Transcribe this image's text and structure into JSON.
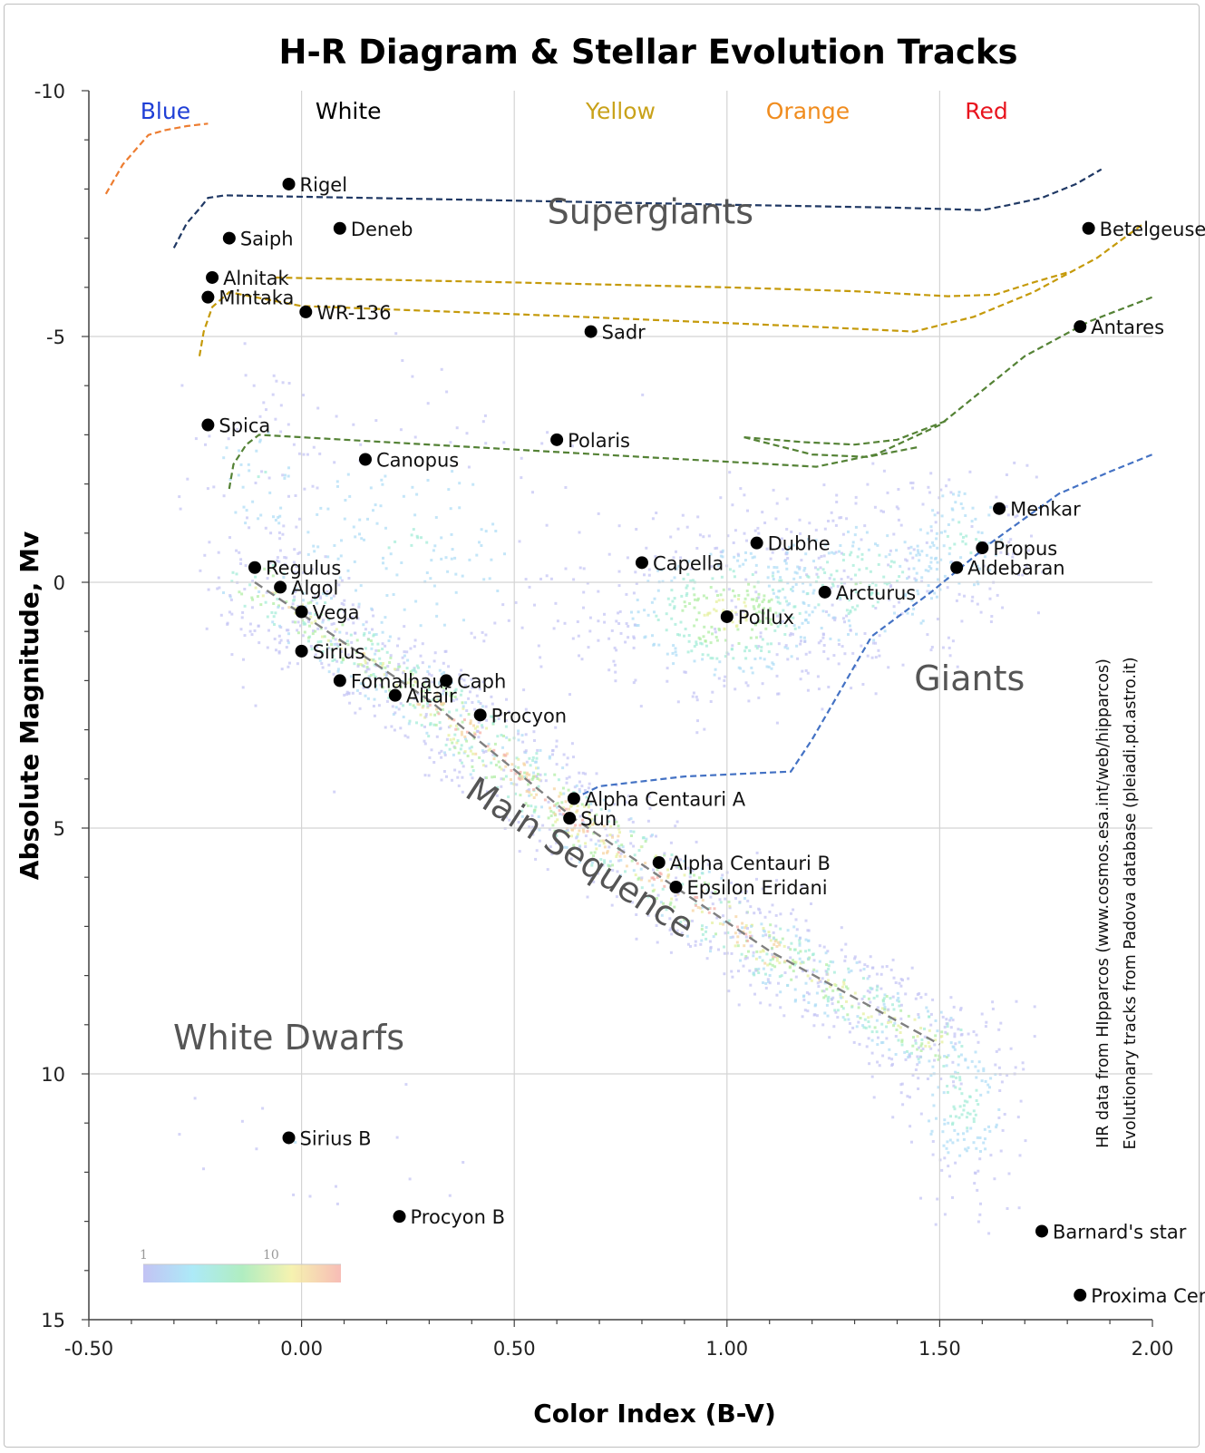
{
  "chart_data": {
    "type": "scatter",
    "title": "H-R Diagram & Stellar Evolution Tracks",
    "xlabel": "Color Index (B-V)",
    "ylabel": "Absolute Magnitude, Mv",
    "xlim": [
      -0.5,
      2.0
    ],
    "ylim": [
      -10,
      15
    ],
    "y_inverted": true,
    "grid": true,
    "x_ticks": [
      -0.5,
      0.0,
      0.5,
      1.0,
      1.5,
      2.0
    ],
    "x_tick_labels": [
      "-0.50",
      "0.00",
      "0.50",
      "1.00",
      "1.50",
      "2.00"
    ],
    "y_ticks": [
      -10,
      -5,
      0,
      5,
      10,
      15
    ],
    "y_tick_labels": [
      "-10",
      "-5",
      "0",
      "5",
      "10",
      "15"
    ],
    "color_bands": [
      {
        "label": "Blue",
        "x": -0.32,
        "color": "#1f3fd6"
      },
      {
        "label": "White",
        "x": 0.11,
        "color": "#000000"
      },
      {
        "label": "Yellow",
        "x": 0.75,
        "color": "#c9a21a"
      },
      {
        "label": "Orange",
        "x": 1.19,
        "color": "#f08c1e"
      },
      {
        "label": "Red",
        "x": 1.61,
        "color": "#e8141e"
      }
    ],
    "regions": [
      {
        "label": "Supergiants",
        "x": 0.82,
        "y": -7.3,
        "rotation": 0
      },
      {
        "label": "Giants",
        "x": 1.57,
        "y": 2.2,
        "rotation": 0
      },
      {
        "label": "White Dwarfs",
        "x": -0.03,
        "y": 9.5,
        "rotation": 0
      },
      {
        "label": "Main Sequence",
        "x": 0.64,
        "y": 5.8,
        "rotation": 33
      }
    ],
    "stars": [
      {
        "name": "Rigel",
        "x": -0.03,
        "y": -8.1
      },
      {
        "name": "Deneb",
        "x": 0.09,
        "y": -7.2
      },
      {
        "name": "Saiph",
        "x": -0.17,
        "y": -7.0
      },
      {
        "name": "Betelgeuse",
        "x": 1.85,
        "y": -7.2
      },
      {
        "name": "Alnitak",
        "x": -0.21,
        "y": -6.2
      },
      {
        "name": "Mintaka",
        "x": -0.22,
        "y": -5.8
      },
      {
        "name": "WR-136",
        "x": 0.01,
        "y": -5.5
      },
      {
        "name": "Sadr",
        "x": 0.68,
        "y": -5.1
      },
      {
        "name": "Antares",
        "x": 1.83,
        "y": -5.2
      },
      {
        "name": "Spica",
        "x": -0.22,
        "y": -3.2
      },
      {
        "name": "Polaris",
        "x": 0.6,
        "y": -2.9
      },
      {
        "name": "Canopus",
        "x": 0.15,
        "y": -2.5
      },
      {
        "name": "Menkar",
        "x": 1.64,
        "y": -1.5
      },
      {
        "name": "Dubhe",
        "x": 1.07,
        "y": -0.8
      },
      {
        "name": "Propus",
        "x": 1.6,
        "y": -0.7
      },
      {
        "name": "Capella",
        "x": 0.8,
        "y": -0.4
      },
      {
        "name": "Aldebaran",
        "x": 1.54,
        "y": -0.3
      },
      {
        "name": "Regulus",
        "x": -0.11,
        "y": -0.3
      },
      {
        "name": "Algol",
        "x": -0.05,
        "y": 0.1
      },
      {
        "name": "Arcturus",
        "x": 1.23,
        "y": 0.2
      },
      {
        "name": "Vega",
        "x": 0.0,
        "y": 0.6
      },
      {
        "name": "Pollux",
        "x": 1.0,
        "y": 0.7
      },
      {
        "name": "Sirius",
        "x": 0.0,
        "y": 1.4
      },
      {
        "name": "Fomalhaut",
        "x": 0.09,
        "y": 2.0
      },
      {
        "name": "Caph",
        "x": 0.34,
        "y": 2.0
      },
      {
        "name": "Altair",
        "x": 0.22,
        "y": 2.3
      },
      {
        "name": "Procyon",
        "x": 0.42,
        "y": 2.7
      },
      {
        "name": "Alpha Centauri A",
        "x": 0.64,
        "y": 4.4
      },
      {
        "name": "Sun",
        "x": 0.63,
        "y": 4.8
      },
      {
        "name": "Alpha Centauri B",
        "x": 0.84,
        "y": 5.7
      },
      {
        "name": "Epsilon Eridani",
        "x": 0.88,
        "y": 6.2
      },
      {
        "name": "Sirius B",
        "x": -0.03,
        "y": 11.3
      },
      {
        "name": "Procyon B",
        "x": 0.23,
        "y": 12.9
      },
      {
        "name": "Barnard's star",
        "x": 1.74,
        "y": 13.2
      },
      {
        "name": "Proxima Centauri",
        "x": 1.83,
        "y": 14.5
      }
    ],
    "main_sequence_line": [
      [
        -0.11,
        0.0
      ],
      [
        0.3,
        2.4
      ],
      [
        0.64,
        4.8
      ],
      [
        1.1,
        7.5
      ],
      [
        1.5,
        9.4
      ]
    ],
    "evolution_tracks": [
      {
        "color": "#ed7d31",
        "points": [
          [
            -0.46,
            -7.9
          ],
          [
            -0.42,
            -8.5
          ],
          [
            -0.38,
            -8.9
          ],
          [
            -0.36,
            -9.1
          ],
          [
            -0.32,
            -9.2
          ],
          [
            -0.27,
            -9.28
          ],
          [
            -0.22,
            -9.33
          ]
        ]
      },
      {
        "color": "#1f3864",
        "points": [
          [
            -0.3,
            -6.8
          ],
          [
            -0.27,
            -7.3
          ],
          [
            -0.24,
            -7.6
          ],
          [
            -0.22,
            -7.82
          ],
          [
            -0.18,
            -7.87
          ],
          [
            0.4,
            -7.78
          ],
          [
            1.0,
            -7.68
          ],
          [
            1.4,
            -7.62
          ],
          [
            1.6,
            -7.57
          ],
          [
            1.66,
            -7.67
          ],
          [
            1.74,
            -7.82
          ],
          [
            1.82,
            -8.1
          ],
          [
            1.88,
            -8.4
          ]
        ]
      },
      {
        "color": "#c59a0a",
        "points": [
          [
            -0.24,
            -4.6
          ],
          [
            -0.23,
            -5.1
          ],
          [
            -0.21,
            -5.6
          ],
          [
            -0.17,
            -5.9
          ],
          [
            0.0,
            -5.62
          ],
          [
            0.6,
            -5.42
          ],
          [
            1.2,
            -5.2
          ],
          [
            1.44,
            -5.1
          ],
          [
            1.58,
            -5.4
          ],
          [
            1.72,
            -5.9
          ],
          [
            1.87,
            -6.6
          ],
          [
            1.98,
            -7.3
          ]
        ]
      },
      {
        "color": "#c59a0a",
        "points": [
          [
            -0.06,
            -6.2
          ],
          [
            0.5,
            -6.1
          ],
          [
            1.0,
            -6.0
          ],
          [
            1.3,
            -5.92
          ],
          [
            1.52,
            -5.82
          ],
          [
            1.63,
            -5.85
          ],
          [
            1.72,
            -6.1
          ],
          [
            1.8,
            -6.3
          ]
        ]
      },
      {
        "color": "#548235",
        "points": [
          [
            -0.17,
            -1.9
          ],
          [
            -0.16,
            -2.4
          ],
          [
            -0.13,
            -2.8
          ],
          [
            -0.1,
            -3.0
          ],
          [
            0.4,
            -2.75
          ],
          [
            0.8,
            -2.55
          ],
          [
            1.21,
            -2.35
          ],
          [
            1.35,
            -2.6
          ],
          [
            1.5,
            -3.2
          ],
          [
            1.7,
            -4.6
          ],
          [
            1.85,
            -5.3
          ],
          [
            2.0,
            -5.8
          ]
        ]
      },
      {
        "color": "#548235",
        "points": [
          [
            1.04,
            -2.95
          ],
          [
            1.18,
            -2.85
          ],
          [
            1.3,
            -2.8
          ],
          [
            1.4,
            -2.9
          ],
          [
            1.52,
            -3.3
          ]
        ]
      },
      {
        "color": "#548235",
        "points": [
          [
            1.04,
            -2.95
          ],
          [
            1.2,
            -2.6
          ],
          [
            1.33,
            -2.55
          ],
          [
            1.45,
            -2.75
          ]
        ]
      },
      {
        "color": "#4472c4",
        "points": [
          [
            0.64,
            4.4
          ],
          [
            0.7,
            4.15
          ],
          [
            0.9,
            3.95
          ],
          [
            1.15,
            3.85
          ],
          [
            1.2,
            3.2
          ],
          [
            1.26,
            2.3
          ],
          [
            1.34,
            1.1
          ],
          [
            1.48,
            0.2
          ],
          [
            1.62,
            -0.8
          ],
          [
            1.78,
            -1.8
          ],
          [
            1.9,
            -2.25
          ],
          [
            2.0,
            -2.6
          ]
        ]
      }
    ],
    "density_colorbar": {
      "labels": [
        "1",
        "10"
      ]
    },
    "annotation": [
      "HR data from HIpparcos (www.cosmos.esa.int/web/hipparcos)",
      "Evolutionary tracks from Padova database (pleiadi.pd.astro.it)"
    ]
  }
}
